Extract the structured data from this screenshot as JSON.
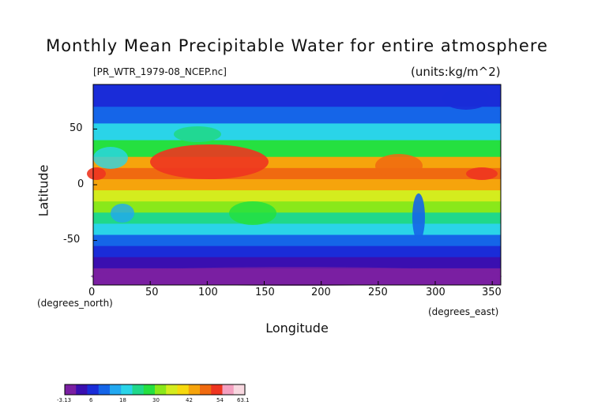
{
  "chart_data": {
    "type": "heatmap",
    "title": "Monthly Mean Precipitable Water for entire atmosphere",
    "source_label": "[PR_WTR_1979-08_NCEP.nc]",
    "units_label": "(units:kg/m^2)",
    "xlabel": "Longitude",
    "ylabel": "Latitude",
    "x_units_label": "(degrees_east)",
    "y_units_label": "(degrees_north)",
    "xlim": [
      0,
      357.5
    ],
    "ylim": [
      -90,
      90
    ],
    "x_ticks": [
      "0",
      "50",
      "100",
      "150",
      "200",
      "250",
      "300",
      "350"
    ],
    "y_ticks": [
      "50",
      "0",
      "-50"
    ],
    "colorbar": {
      "min": -3.13,
      "max": 63.1,
      "tick_labels": [
        "-3.13",
        "6",
        "18",
        "30",
        "42",
        "54",
        "63.1"
      ],
      "colors": [
        "#7a1fa2",
        "#3a0fb0",
        "#1a2cd8",
        "#1565e8",
        "#22a8f0",
        "#2ad4e8",
        "#20d88a",
        "#25e040",
        "#8ae81a",
        "#d4ec1e",
        "#f6d90e",
        "#f6a40c",
        "#f06a10",
        "#ee3520",
        "#f4a0c0",
        "#f8d8e0"
      ]
    },
    "latitude_profile": [
      {
        "lat": 90,
        "value": 6
      },
      {
        "lat": 70,
        "value": 12
      },
      {
        "lat": 55,
        "value": 20
      },
      {
        "lat": 40,
        "value": 28
      },
      {
        "lat": 25,
        "value": 44
      },
      {
        "lat": 15,
        "value": 50
      },
      {
        "lat": 5,
        "value": 46
      },
      {
        "lat": -5,
        "value": 38
      },
      {
        "lat": -15,
        "value": 30
      },
      {
        "lat": -25,
        "value": 24
      },
      {
        "lat": -35,
        "value": 18
      },
      {
        "lat": -45,
        "value": 12
      },
      {
        "lat": -55,
        "value": 8
      },
      {
        "lat": -65,
        "value": 4
      },
      {
        "lat": -75,
        "value": 1
      },
      {
        "lat": -90,
        "value": 0
      }
    ]
  }
}
